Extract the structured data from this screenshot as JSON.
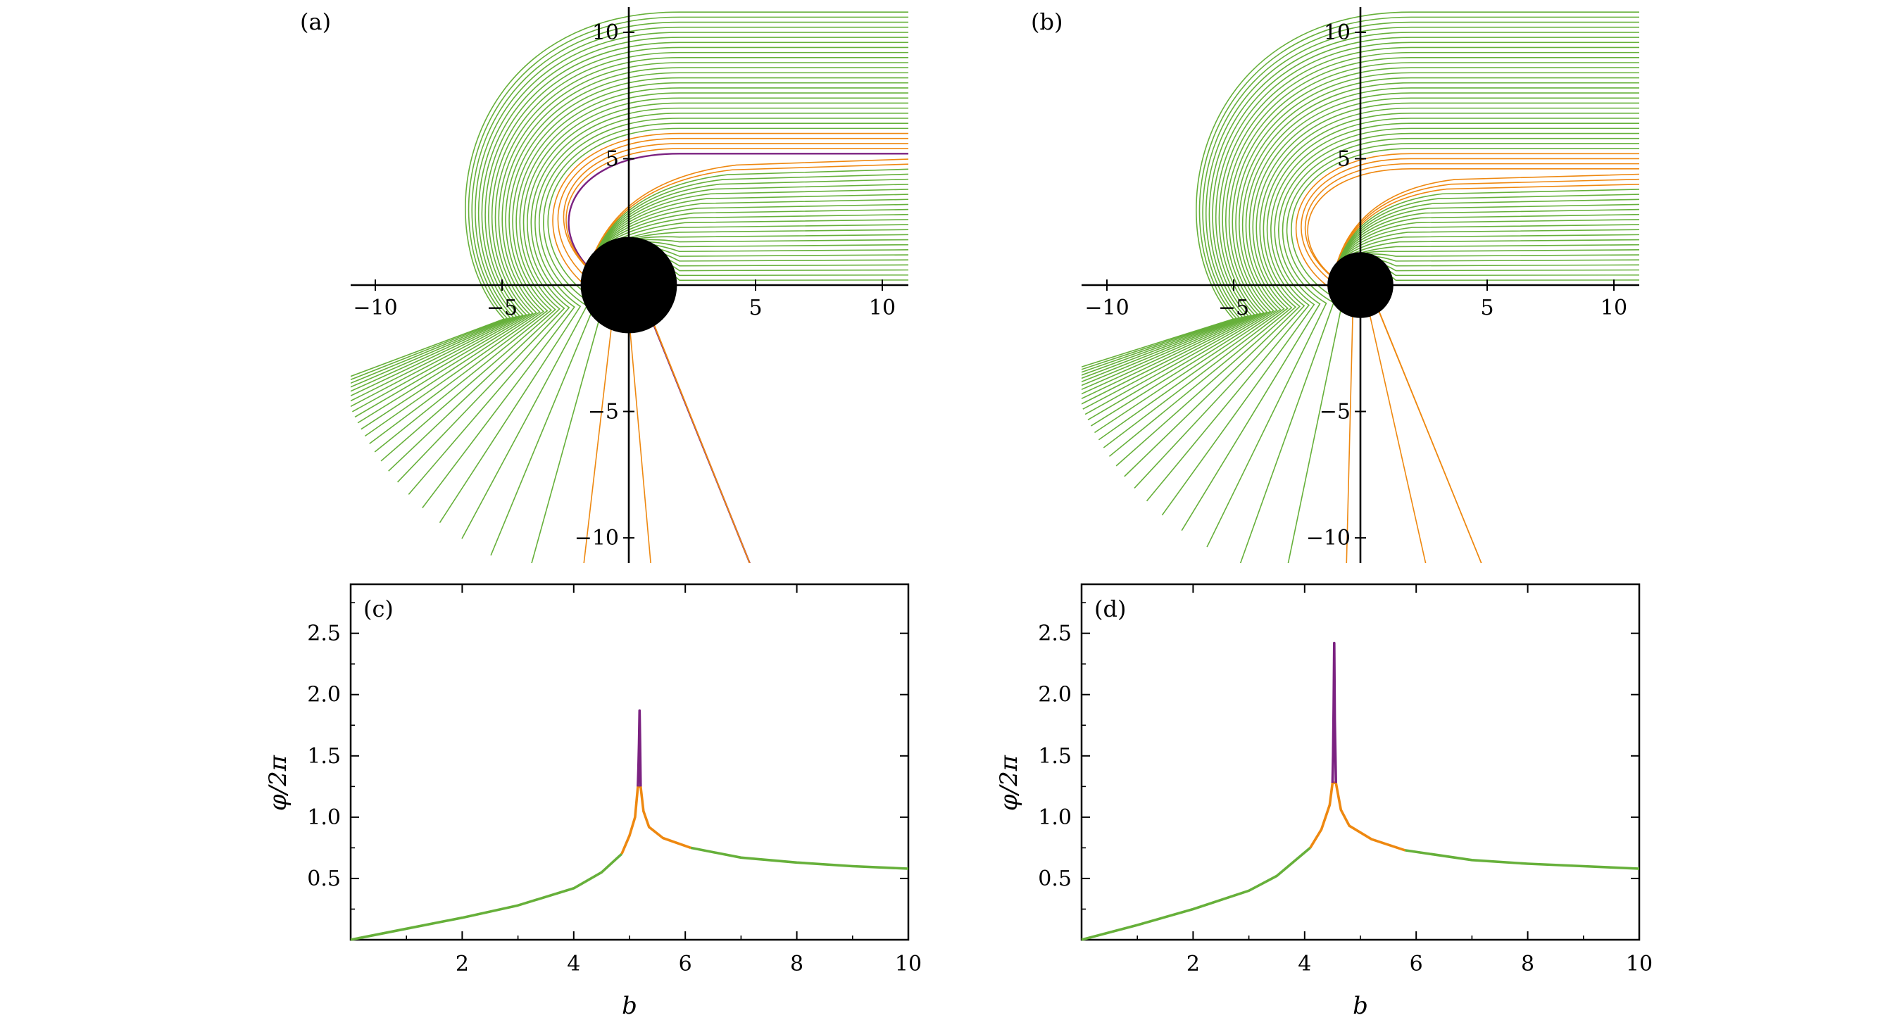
{
  "colors": {
    "orange": "#ee8810",
    "purple": "#7b2281",
    "green": "#66b03a",
    "black": "#000000"
  },
  "chart_data": [
    {
      "id": "a",
      "type": "line",
      "panel_label": "(a)",
      "description_kind": "ray-trajectories",
      "xlim": [
        -11,
        11
      ],
      "ylim": [
        -11,
        11
      ],
      "x_ticks": [
        -10,
        -5,
        5,
        10
      ],
      "y_ticks": [
        -10,
        -5,
        5,
        10
      ],
      "x_tick_labels": [
        "−10",
        "−5",
        "5",
        "10"
      ],
      "y_tick_labels": [
        "−10",
        "−5",
        "5",
        "10"
      ],
      "shadow_radius": 1.9,
      "critical_b": 5.2,
      "b_step": 0.2,
      "grid": false
    },
    {
      "id": "b",
      "type": "line",
      "panel_label": "(b)",
      "description_kind": "ray-trajectories",
      "xlim": [
        -11,
        11
      ],
      "ylim": [
        -11,
        11
      ],
      "x_ticks": [
        -10,
        -5,
        5,
        10
      ],
      "y_ticks": [
        -10,
        -5,
        5,
        10
      ],
      "x_tick_labels": [
        "−10",
        "−5",
        "5",
        "10"
      ],
      "y_tick_labels": [
        "−10",
        "−5",
        "5",
        "10"
      ],
      "shadow_radius": 1.3,
      "critical_b": 4.5,
      "b_step": 0.2,
      "grid": false
    },
    {
      "id": "c",
      "type": "line",
      "panel_label": "(c)",
      "xlabel": "b",
      "ylabel": "φ/2π",
      "xlim": [
        0,
        10
      ],
      "ylim": [
        0,
        2.9
      ],
      "x_ticks": [
        2,
        4,
        6,
        8,
        10
      ],
      "y_ticks": [
        0.5,
        1.0,
        1.5,
        2.0,
        2.5
      ],
      "x_tick_labels": [
        "2",
        "4",
        "6",
        "8",
        "10"
      ],
      "y_tick_labels": [
        "0.5",
        "1.0",
        "1.5",
        "2.0",
        "2.5"
      ],
      "series": [
        {
          "color_key": "green",
          "x": [
            0,
            1,
            2,
            3,
            4,
            4.5,
            4.86
          ],
          "y": [
            0.0,
            0.09,
            0.18,
            0.28,
            0.42,
            0.55,
            0.7
          ]
        },
        {
          "color_key": "orange",
          "x": [
            4.86,
            5.0,
            5.1,
            5.15,
            5.2,
            5.25,
            5.35,
            5.6,
            6.1
          ],
          "y": [
            0.7,
            0.85,
            1.0,
            1.25,
            1.25,
            1.05,
            0.92,
            0.83,
            0.75
          ]
        },
        {
          "color_key": "purple",
          "x": [
            5.15,
            5.16,
            5.17,
            5.18,
            5.19,
            5.2
          ],
          "y": [
            1.25,
            1.4,
            1.6,
            1.87,
            1.6,
            1.25
          ]
        },
        {
          "color_key": "green",
          "x": [
            6.1,
            7,
            8,
            9,
            10
          ],
          "y": [
            0.75,
            0.67,
            0.63,
            0.6,
            0.58
          ]
        }
      ]
    },
    {
      "id": "d",
      "type": "line",
      "panel_label": "(d)",
      "xlabel": "b",
      "ylabel": "φ/2π",
      "xlim": [
        0,
        10
      ],
      "ylim": [
        0,
        2.9
      ],
      "x_ticks": [
        2,
        4,
        6,
        8,
        10
      ],
      "y_ticks": [
        0.5,
        1.0,
        1.5,
        2.0,
        2.5
      ],
      "x_tick_labels": [
        "2",
        "4",
        "6",
        "8",
        "10"
      ],
      "y_tick_labels": [
        "0.5",
        "1.0",
        "1.5",
        "2.0",
        "2.5"
      ],
      "series": [
        {
          "color_key": "green",
          "x": [
            0,
            1,
            2,
            3,
            3.5,
            4.1
          ],
          "y": [
            0.0,
            0.12,
            0.25,
            0.4,
            0.52,
            0.75
          ]
        },
        {
          "color_key": "orange",
          "x": [
            4.1,
            4.3,
            4.45,
            4.5,
            4.56,
            4.65,
            4.8,
            5.2,
            5.8
          ],
          "y": [
            0.75,
            0.9,
            1.1,
            1.28,
            1.28,
            1.06,
            0.93,
            0.82,
            0.73
          ]
        },
        {
          "color_key": "purple",
          "x": [
            4.5,
            4.51,
            4.52,
            4.53,
            4.54,
            4.56
          ],
          "y": [
            1.28,
            1.5,
            1.9,
            2.42,
            1.8,
            1.28
          ]
        },
        {
          "color_key": "green",
          "x": [
            5.8,
            7,
            8,
            9,
            10
          ],
          "y": [
            0.73,
            0.65,
            0.62,
            0.6,
            0.58
          ]
        }
      ]
    }
  ]
}
